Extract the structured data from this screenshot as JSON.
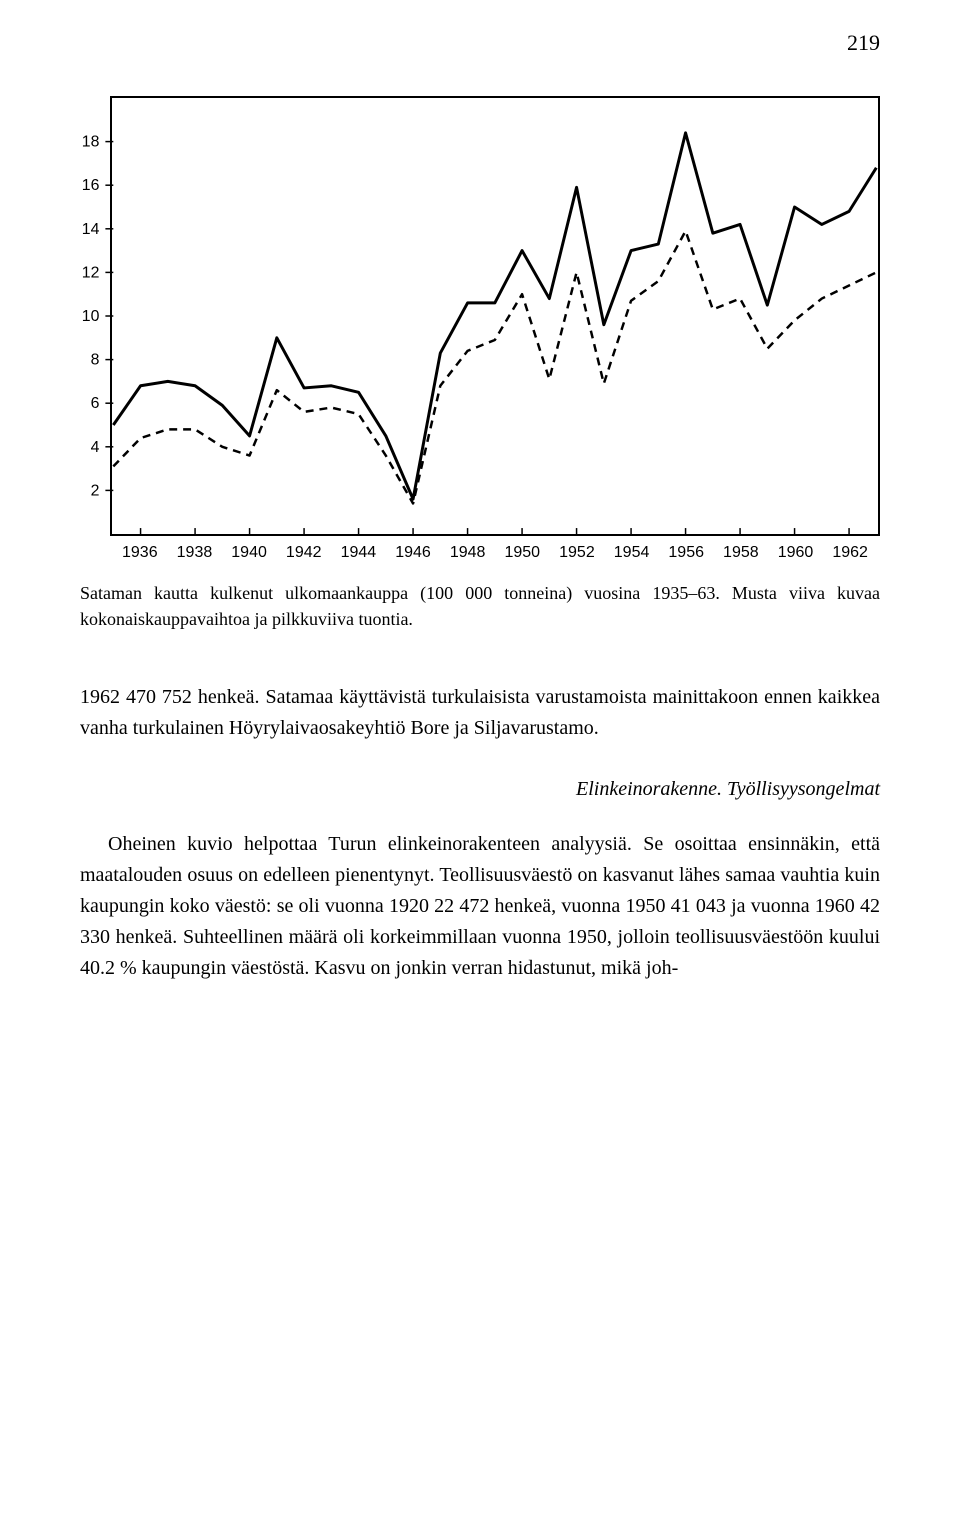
{
  "page_number": "219",
  "chart": {
    "type": "line",
    "xlim": [
      1935,
      1963
    ],
    "ylim": [
      0,
      20
    ],
    "y_ticks": [
      2,
      4,
      6,
      8,
      10,
      12,
      14,
      16,
      18
    ],
    "x_ticks": [
      1936,
      1938,
      1940,
      1942,
      1944,
      1946,
      1948,
      1950,
      1952,
      1954,
      1956,
      1958,
      1960,
      1962
    ],
    "background_color": "#ffffff",
    "border_color": "#000000",
    "line_color": "#000000",
    "solid_line_width": 3,
    "dashed_line_width": 2.5,
    "dash_pattern": "8,6",
    "tick_fontsize": 16,
    "series_solid": [
      [
        1935,
        5.0
      ],
      [
        1936,
        6.8
      ],
      [
        1937,
        7.0
      ],
      [
        1938,
        6.8
      ],
      [
        1939,
        5.9
      ],
      [
        1940,
        4.5
      ],
      [
        1941,
        9.0
      ],
      [
        1942,
        6.7
      ],
      [
        1943,
        6.8
      ],
      [
        1944,
        6.5
      ],
      [
        1945,
        4.5
      ],
      [
        1946,
        1.6
      ],
      [
        1947,
        8.3
      ],
      [
        1948,
        10.6
      ],
      [
        1949,
        10.6
      ],
      [
        1950,
        13.0
      ],
      [
        1951,
        10.8
      ],
      [
        1952,
        15.9
      ],
      [
        1953,
        9.6
      ],
      [
        1954,
        13.0
      ],
      [
        1955,
        13.3
      ],
      [
        1956,
        18.4
      ],
      [
        1957,
        13.8
      ],
      [
        1958,
        14.2
      ],
      [
        1959,
        10.5
      ],
      [
        1960,
        15.0
      ],
      [
        1961,
        14.2
      ],
      [
        1962,
        14.8
      ],
      [
        1963,
        16.8
      ]
    ],
    "series_dashed": [
      [
        1935,
        3.1
      ],
      [
        1936,
        4.4
      ],
      [
        1937,
        4.8
      ],
      [
        1938,
        4.8
      ],
      [
        1939,
        4.0
      ],
      [
        1940,
        3.6
      ],
      [
        1941,
        6.6
      ],
      [
        1942,
        5.6
      ],
      [
        1943,
        5.8
      ],
      [
        1944,
        5.5
      ],
      [
        1945,
        3.6
      ],
      [
        1946,
        1.4
      ],
      [
        1947,
        6.8
      ],
      [
        1948,
        8.4
      ],
      [
        1949,
        8.9
      ],
      [
        1950,
        11.0
      ],
      [
        1951,
        7.1
      ],
      [
        1952,
        12.0
      ],
      [
        1953,
        6.9
      ],
      [
        1954,
        10.7
      ],
      [
        1955,
        11.6
      ],
      [
        1956,
        13.9
      ],
      [
        1957,
        10.3
      ],
      [
        1958,
        10.8
      ],
      [
        1959,
        8.5
      ],
      [
        1960,
        9.8
      ],
      [
        1961,
        10.8
      ],
      [
        1962,
        11.4
      ],
      [
        1963,
        12.0
      ]
    ]
  },
  "caption": "Sataman kautta kulkenut ulkomaankauppa (100 000 tonneina) vuosina 1935–63. Musta viiva kuvaa kokonaiskauppavaihtoa ja pilkkuviiva tuontia.",
  "paragraph1": "1962 470 752 henkeä. Satamaa käyttävistä turkulaisista varustamoista mainittakoon ennen kaikkea vanha turkulainen Höyrylaivaosakeyhtiö Bore ja Siljavarustamo.",
  "section_heading": "Elinkeinorakenne. Työllisyysongelmat",
  "paragraph2": "Oheinen kuvio helpottaa Turun elinkeinorakenteen analyysiä. Se osoittaa ensinnäkin, että maatalouden osuus on edelleen pienentynyt. Teollisuusväestö on kasvanut lähes samaa vauhtia kuin kaupungin koko väestö: se oli vuonna 1920 22 472 henkeä, vuonna 1950 41 043 ja vuonna 1960 42 330 henkeä. Suhteellinen määrä oli korkeimmillaan vuonna 1950, jolloin teollisuusväestöön kuului 40.2 % kaupungin väestöstä. Kasvu on jonkin verran hidastunut, mikä joh-"
}
